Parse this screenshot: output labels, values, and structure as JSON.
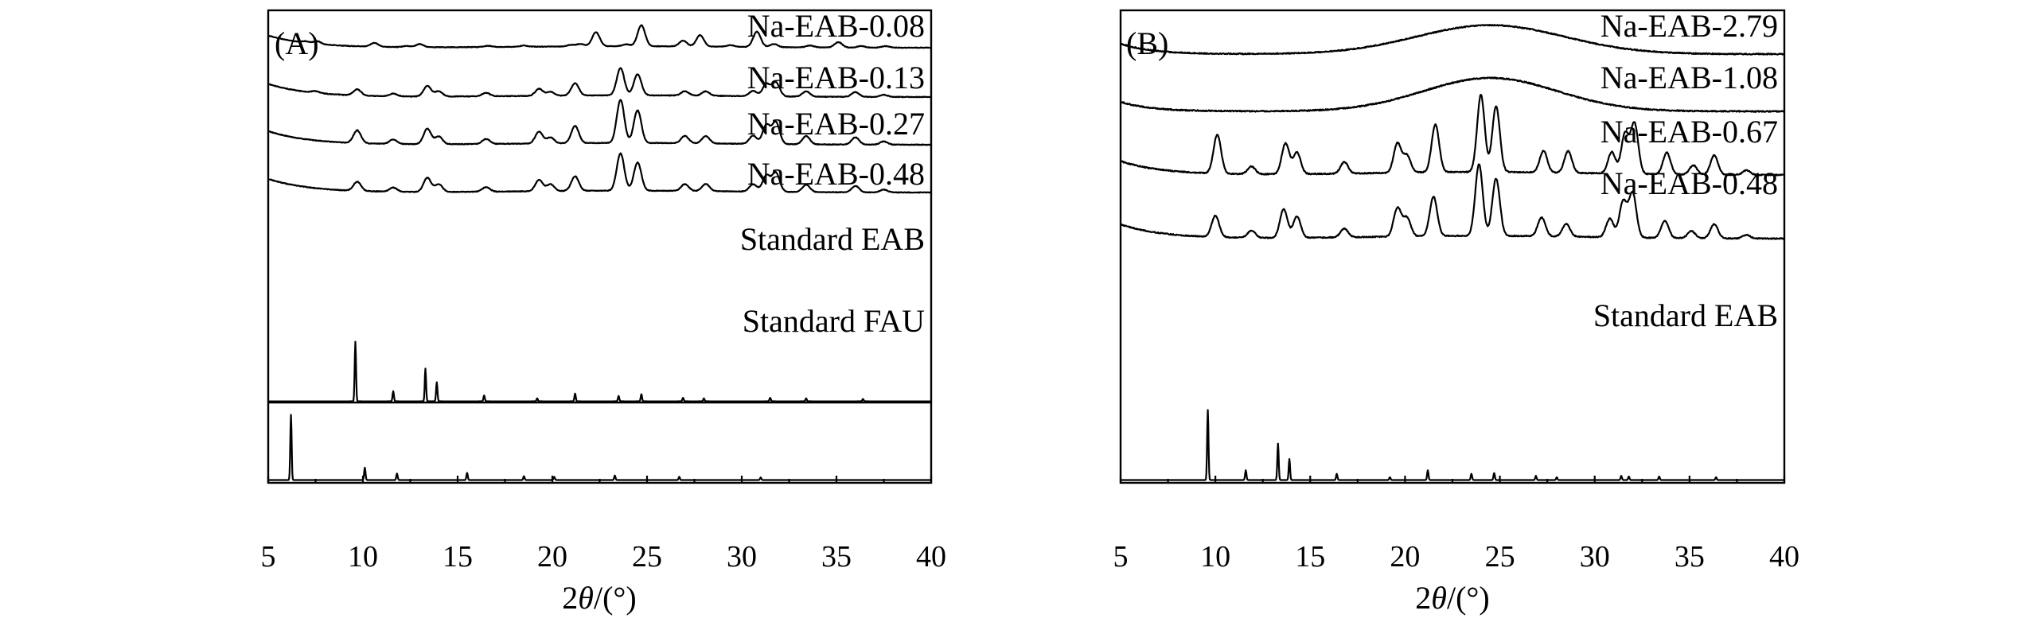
{
  "chart_data": [
    {
      "type": "line",
      "panel_label": "(A)",
      "xlabel_prefix": "2",
      "xlabel_symbol": "θ",
      "xlabel_suffix": "/(°)",
      "xlim": [
        5,
        40
      ],
      "x_ticks": [
        "5",
        "10",
        "15",
        "20",
        "25",
        "30",
        "35",
        "40"
      ],
      "series": [
        {
          "name": "Na-EAB-0.08",
          "baseline": 0.32,
          "peaks": [
            [
              7.0,
              0.04
            ],
            [
              7.6,
              0.07
            ],
            [
              10.6,
              0.1
            ],
            [
              12.3,
              0.03
            ],
            [
              13.0,
              0.08
            ],
            [
              16.6,
              0.03
            ],
            [
              18.5,
              0.03
            ],
            [
              21.0,
              0.04
            ],
            [
              21.5,
              0.06
            ],
            [
              22.3,
              0.37
            ],
            [
              23.9,
              0.05
            ],
            [
              24.7,
              0.55
            ],
            [
              26.9,
              0.15
            ],
            [
              27.8,
              0.3
            ],
            [
              29.4,
              0.04
            ],
            [
              30.8,
              0.4
            ],
            [
              31.7,
              0.08
            ],
            [
              33.6,
              0.05
            ],
            [
              35.1,
              0.14
            ],
            [
              36.3,
              0.04
            ],
            [
              37.6,
              0.04
            ]
          ]
        },
        {
          "name": "Na-EAB-0.13",
          "baseline": 0.3,
          "peaks": [
            [
              7.5,
              0.04
            ],
            [
              9.7,
              0.14
            ],
            [
              11.6,
              0.06
            ],
            [
              13.4,
              0.24
            ],
            [
              14.0,
              0.12
            ],
            [
              16.5,
              0.08
            ],
            [
              19.3,
              0.16
            ],
            [
              19.9,
              0.09
            ],
            [
              21.2,
              0.28
            ],
            [
              23.6,
              0.62
            ],
            [
              24.5,
              0.48
            ],
            [
              27.0,
              0.1
            ],
            [
              28.1,
              0.1
            ],
            [
              30.6,
              0.12
            ],
            [
              31.3,
              0.28
            ],
            [
              31.8,
              0.32
            ],
            [
              33.4,
              0.12
            ],
            [
              36.0,
              0.11
            ],
            [
              37.5,
              0.05
            ]
          ]
        },
        {
          "name": "Na-EAB-0.27",
          "baseline": 0.3,
          "peaks": [
            [
              9.7,
              0.28
            ],
            [
              11.6,
              0.1
            ],
            [
              13.4,
              0.34
            ],
            [
              14.0,
              0.17
            ],
            [
              16.5,
              0.11
            ],
            [
              19.3,
              0.26
            ],
            [
              19.9,
              0.13
            ],
            [
              21.2,
              0.38
            ],
            [
              23.6,
              0.95
            ],
            [
              24.5,
              0.72
            ],
            [
              27.0,
              0.16
            ],
            [
              28.1,
              0.16
            ],
            [
              30.6,
              0.18
            ],
            [
              31.3,
              0.42
            ],
            [
              31.8,
              0.48
            ],
            [
              33.4,
              0.18
            ],
            [
              36.0,
              0.16
            ],
            [
              37.5,
              0.07
            ]
          ]
        },
        {
          "name": "Na-EAB-0.48",
          "baseline": 0.3,
          "peaks": [
            [
              9.7,
              0.2
            ],
            [
              11.6,
              0.09
            ],
            [
              13.4,
              0.31
            ],
            [
              14.0,
              0.17
            ],
            [
              16.5,
              0.1
            ],
            [
              19.3,
              0.25
            ],
            [
              19.9,
              0.15
            ],
            [
              21.2,
              0.32
            ],
            [
              23.6,
              0.82
            ],
            [
              24.5,
              0.62
            ],
            [
              27.0,
              0.15
            ],
            [
              28.1,
              0.16
            ],
            [
              30.6,
              0.16
            ],
            [
              31.3,
              0.36
            ],
            [
              31.8,
              0.42
            ],
            [
              33.4,
              0.16
            ],
            [
              36.0,
              0.14
            ],
            [
              37.5,
              0.06
            ]
          ]
        },
        {
          "name": "Standard EAB",
          "baseline": 0.03,
          "peaks": [
            [
              9.6,
              1.0
            ],
            [
              11.6,
              0.17
            ],
            [
              13.3,
              0.55
            ],
            [
              13.9,
              0.32
            ],
            [
              16.4,
              0.1
            ],
            [
              19.2,
              0.05
            ],
            [
              21.2,
              0.13
            ],
            [
              23.5,
              0.09
            ],
            [
              24.7,
              0.12
            ],
            [
              26.9,
              0.06
            ],
            [
              28.0,
              0.05
            ],
            [
              31.5,
              0.06
            ],
            [
              33.4,
              0.05
            ],
            [
              36.4,
              0.04
            ]
          ]
        },
        {
          "name": "Standard FAU",
          "baseline": 0.03,
          "peaks": [
            [
              6.2,
              1.0
            ],
            [
              10.1,
              0.19
            ],
            [
              11.8,
              0.1
            ],
            [
              15.5,
              0.11
            ],
            [
              18.5,
              0.06
            ],
            [
              20.1,
              0.05
            ],
            [
              23.3,
              0.07
            ],
            [
              26.7,
              0.05
            ],
            [
              31.0,
              0.04
            ]
          ]
        }
      ]
    },
    {
      "type": "line",
      "panel_label": "(B)",
      "xlabel_prefix": "2",
      "xlabel_symbol": "θ",
      "xlabel_suffix": "/(°)",
      "xlim": [
        5,
        40
      ],
      "x_ticks": [
        "5",
        "10",
        "15",
        "20",
        "25",
        "30",
        "35",
        "40"
      ],
      "series": [
        {
          "name": "Na-EAB-2.79",
          "baseline": 0.12,
          "amorphous_hump": [
            24.5,
            5.5,
            0.33
          ],
          "peaks": []
        },
        {
          "name": "Na-EAB-1.08",
          "baseline": 0.1,
          "amorphous_hump": [
            24.5,
            5.0,
            0.35
          ],
          "peaks": []
        },
        {
          "name": "Na-EAB-0.67",
          "baseline": 0.18,
          "peaks": [
            [
              10.1,
              0.5
            ],
            [
              11.9,
              0.1
            ],
            [
              13.7,
              0.4
            ],
            [
              14.3,
              0.28
            ],
            [
              16.8,
              0.15
            ],
            [
              19.6,
              0.38
            ],
            [
              20.1,
              0.22
            ],
            [
              21.6,
              0.62
            ],
            [
              24.0,
              1.0
            ],
            [
              24.8,
              0.85
            ],
            [
              27.3,
              0.28
            ],
            [
              28.6,
              0.28
            ],
            [
              30.9,
              0.28
            ],
            [
              31.6,
              0.52
            ],
            [
              32.1,
              0.65
            ],
            [
              33.8,
              0.28
            ],
            [
              35.2,
              0.12
            ],
            [
              36.3,
              0.25
            ],
            [
              38.0,
              0.06
            ]
          ]
        },
        {
          "name": "Na-EAB-0.48",
          "baseline": 0.2,
          "peaks": [
            [
              10.0,
              0.3
            ],
            [
              11.9,
              0.1
            ],
            [
              13.6,
              0.4
            ],
            [
              14.3,
              0.3
            ],
            [
              16.8,
              0.12
            ],
            [
              19.6,
              0.4
            ],
            [
              20.1,
              0.26
            ],
            [
              21.5,
              0.55
            ],
            [
              23.9,
              1.0
            ],
            [
              24.8,
              0.8
            ],
            [
              27.2,
              0.26
            ],
            [
              28.5,
              0.18
            ],
            [
              30.8,
              0.26
            ],
            [
              31.5,
              0.5
            ],
            [
              32.0,
              0.62
            ],
            [
              33.7,
              0.24
            ],
            [
              35.1,
              0.1
            ],
            [
              36.3,
              0.2
            ],
            [
              38.0,
              0.05
            ]
          ]
        },
        {
          "name": "Standard EAB",
          "baseline": 0.03,
          "peaks": [
            [
              9.6,
              1.0
            ],
            [
              11.6,
              0.14
            ],
            [
              13.3,
              0.52
            ],
            [
              13.9,
              0.3
            ],
            [
              16.4,
              0.09
            ],
            [
              19.2,
              0.04
            ],
            [
              21.2,
              0.14
            ],
            [
              23.5,
              0.09
            ],
            [
              24.7,
              0.1
            ],
            [
              26.9,
              0.06
            ],
            [
              28.0,
              0.04
            ],
            [
              31.4,
              0.06
            ],
            [
              31.8,
              0.05
            ],
            [
              33.4,
              0.05
            ],
            [
              36.4,
              0.04
            ]
          ]
        }
      ]
    }
  ]
}
